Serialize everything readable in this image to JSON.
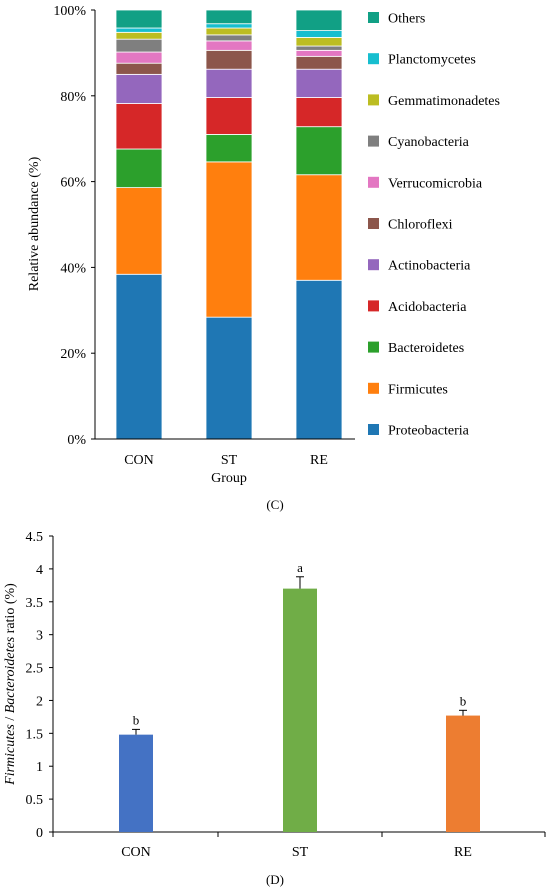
{
  "chart_data": [
    {
      "type": "bar",
      "stacked": true,
      "categories": [
        "CON",
        "ST",
        "RE"
      ],
      "xlabel": "Group",
      "ylabel": "Relative abundance (%)",
      "ylim": [
        0,
        100
      ],
      "yticks": [
        "0%",
        "20%",
        "40%",
        "60%",
        "80%",
        "100%"
      ],
      "legend_position": "right",
      "series": [
        {
          "name": "Proteobacteria",
          "color": "#1f77b4",
          "values": [
            38.4,
            28.4,
            37.0
          ]
        },
        {
          "name": "Firmicutes",
          "color": "#ff7f0e",
          "values": [
            20.2,
            36.2,
            24.6
          ]
        },
        {
          "name": "Bacteroidetes",
          "color": "#2ca02c",
          "values": [
            9.0,
            6.4,
            11.2
          ]
        },
        {
          "name": "Acidobacteria",
          "color": "#d62728",
          "values": [
            10.6,
            8.6,
            6.8
          ]
        },
        {
          "name": "Actinobacteria",
          "color": "#9467bd",
          "values": [
            6.8,
            6.6,
            6.6
          ]
        },
        {
          "name": "Chloroflexi",
          "color": "#8c564b",
          "values": [
            2.6,
            4.4,
            3.0
          ]
        },
        {
          "name": "Verrucomicrobia",
          "color": "#e377c2",
          "values": [
            2.6,
            2.2,
            1.4
          ]
        },
        {
          "name": "Cyanobacteria",
          "color": "#7f7f7f",
          "values": [
            3.0,
            1.4,
            1.0
          ]
        },
        {
          "name": "Gemmatimonadetes",
          "color": "#bcbd22",
          "values": [
            1.6,
            1.6,
            2.0
          ]
        },
        {
          "name": "Planctomycetes",
          "color": "#17becf",
          "values": [
            1.0,
            1.0,
            1.6
          ]
        },
        {
          "name": "Others",
          "color": "#11a085",
          "values": [
            4.2,
            3.2,
            4.8
          ]
        }
      ],
      "caption": "(C)"
    },
    {
      "type": "bar",
      "categories": [
        "CON",
        "ST",
        "RE"
      ],
      "values": [
        1.48,
        3.7,
        1.77
      ],
      "errors": [
        0.08,
        0.18,
        0.08
      ],
      "sig_labels": [
        "b",
        "a",
        "b"
      ],
      "colors": [
        "#4472c4",
        "#70ad47",
        "#ed7d31"
      ],
      "ylabel_italic_1": "Firmicutes",
      "ylabel_sep": " / ",
      "ylabel_italic_2": "Bacteroidetes",
      "ylabel_rest": " ratio (%)",
      "ylim": [
        0,
        4.5
      ],
      "yticks": [
        "0",
        "0.5",
        "1",
        "1.5",
        "2",
        "2.5",
        "3",
        "3.5",
        "4",
        "4.5"
      ],
      "caption": "(D)"
    }
  ]
}
